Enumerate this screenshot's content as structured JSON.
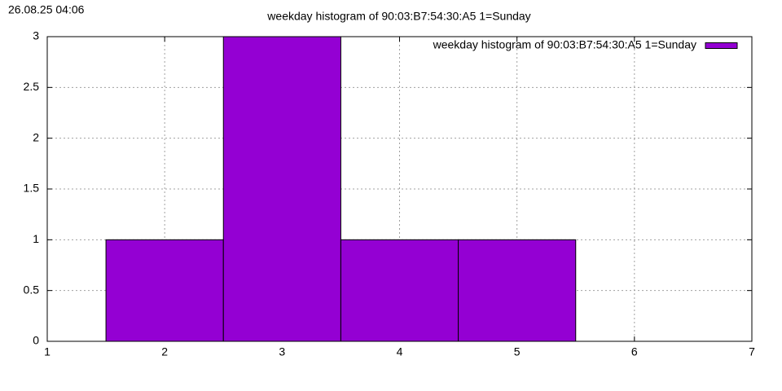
{
  "chart_data": {
    "type": "histogram",
    "title": "weekday histogram of 90:03:B7:54:30:A5 1=Sunday",
    "timestamp": "26.08.25 04:06",
    "bins": [
      1.5,
      2.5,
      3.5,
      4.5,
      5.5
    ],
    "series": [
      {
        "name": "weekday histogram of 90:03:B7:54:30:A5 1=Sunday",
        "color": "#9400d3",
        "values": [
          1,
          3,
          1,
          1
        ]
      }
    ],
    "xlim": [
      1,
      7
    ],
    "xticks": [
      1,
      2,
      3,
      4,
      5,
      6,
      7
    ],
    "ylim": [
      0,
      3
    ],
    "yticks": [
      0,
      0.5,
      1,
      1.5,
      2,
      2.5,
      3
    ],
    "grid": true,
    "legend": "top-right"
  }
}
